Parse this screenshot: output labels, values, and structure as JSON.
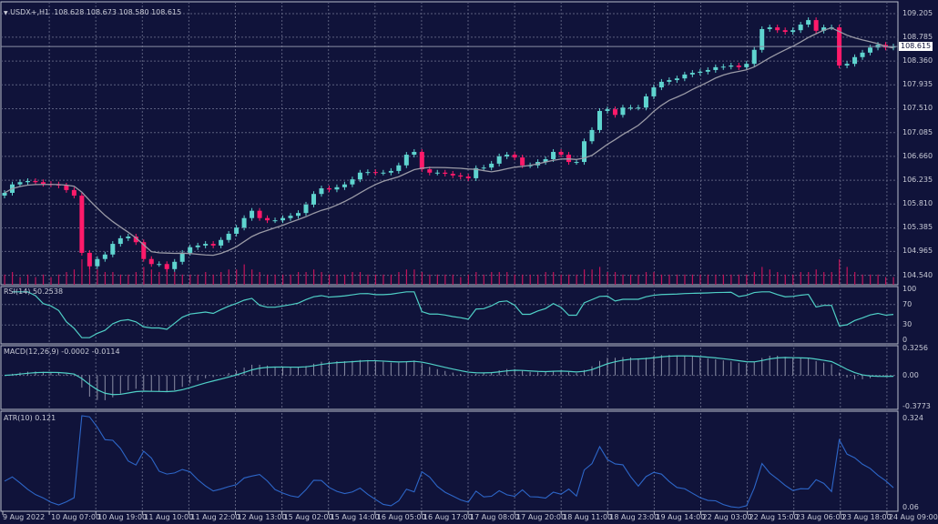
{
  "header": {
    "symbol": "USDX+,H1",
    "ohlc": "108.628 108.673 108.580 108.615",
    "arrow_icon": "triangle-down-icon"
  },
  "current_price": "108.615",
  "colors": {
    "background": "#10133a",
    "bull": "#5fd4cf",
    "bear": "#ff1a6a",
    "ma": "#9a9aa6",
    "rsi": "#4fcfc6",
    "macd": "#4fcfc6",
    "atr": "#2d66c8",
    "volume": "#c0145a",
    "grid": "#5b5f7e"
  },
  "chart_data": [
    {
      "type": "candlestick",
      "pane": "main",
      "ylim": [
        104.371,
        109.416
      ],
      "price_ticks": [
        "109.205",
        "108.785",
        "108.360",
        "107.935",
        "107.510",
        "107.085",
        "106.660",
        "106.235",
        "105.810",
        "105.385",
        "104.965",
        "104.540"
      ],
      "x_tick_labels": [
        "9 Aug 2022",
        "10 Aug 07:00",
        "10 Aug 19:00",
        "11 Aug 10:00",
        "11 Aug 22:00",
        "12 Aug 13:00",
        "15 Aug 02:00",
        "15 Aug 14:00",
        "16 Aug 05:00",
        "16 Aug 17:00",
        "17 Aug 08:00",
        "17 Aug 20:00",
        "18 Aug 11:00",
        "18 Aug 23:00",
        "19 Aug 14:00",
        "22 Aug 03:00",
        "22 Aug 15:00",
        "23 Aug 06:00",
        "23 Aug 18:00",
        "24 Aug 09:00"
      ],
      "close": [
        106.01,
        106.16,
        106.2,
        106.22,
        106.2,
        106.17,
        106.16,
        106.14,
        106.06,
        105.96,
        104.94,
        104.7,
        104.83,
        104.91,
        105.1,
        105.2,
        105.23,
        105.13,
        104.83,
        104.74,
        104.74,
        104.65,
        104.78,
        104.94,
        105.04,
        105.07,
        105.1,
        105.07,
        105.17,
        105.28,
        105.39,
        105.56,
        105.69,
        105.56,
        105.52,
        105.52,
        105.56,
        105.6,
        105.65,
        105.8,
        105.99,
        106.09,
        106.07,
        106.11,
        106.16,
        106.25,
        106.37,
        106.38,
        106.37,
        106.37,
        106.4,
        106.5,
        106.69,
        106.74,
        106.43,
        106.37,
        106.37,
        106.35,
        106.32,
        106.3,
        106.27,
        106.45,
        106.46,
        106.53,
        106.66,
        106.69,
        106.64,
        106.5,
        106.5,
        106.56,
        106.61,
        106.74,
        106.69,
        106.56,
        106.56,
        106.93,
        107.13,
        107.47,
        107.5,
        107.4,
        107.53,
        107.53,
        107.53,
        107.73,
        107.89,
        107.99,
        108.02,
        108.05,
        108.12,
        108.15,
        108.17,
        108.2,
        108.25,
        108.26,
        108.28,
        108.25,
        108.31,
        108.56,
        108.93,
        108.96,
        108.91,
        108.88,
        108.91,
        109.01,
        109.09,
        108.9,
        108.96,
        108.96,
        108.28,
        108.31,
        108.43,
        108.51,
        108.6,
        108.65,
        108.6,
        108.62
      ],
      "volume": [
        4,
        5,
        3,
        4,
        3,
        4,
        3,
        4,
        5,
        6,
        10,
        9,
        6,
        5,
        5,
        4,
        4,
        5,
        7,
        6,
        5,
        6,
        5,
        4,
        4,
        4,
        5,
        4,
        5,
        6,
        6,
        8,
        6,
        5,
        4,
        4,
        4,
        4,
        5,
        5,
        6,
        5,
        4,
        4,
        4,
        5,
        5,
        4,
        4,
        4,
        4,
        5,
        6,
        6,
        5,
        4,
        4,
        4,
        4,
        3,
        4,
        5,
        4,
        5,
        5,
        5,
        4,
        4,
        4,
        4,
        5,
        5,
        4,
        4,
        4,
        6,
        6,
        7,
        5,
        5,
        4,
        4,
        4,
        5,
        5,
        4,
        4,
        4,
        4,
        4,
        4,
        4,
        4,
        4,
        4,
        4,
        4,
        5,
        7,
        6,
        5,
        4,
        4,
        5,
        5,
        6,
        5,
        5,
        10,
        7,
        5,
        4,
        4,
        4,
        3,
        3
      ]
    },
    {
      "type": "line",
      "pane": "rsi",
      "label": "RSI(14) 50.2538",
      "ylim": [
        0,
        100
      ],
      "ticks": [
        "100",
        "70",
        "30",
        "0"
      ]
    },
    {
      "type": "line+bar",
      "pane": "macd",
      "label": "MACD(12,26,9) -0.0002 -0.0114",
      "ylim": [
        -0.3773,
        0.3256
      ],
      "ticks": [
        "0.3256",
        "0.00",
        "-0.3773"
      ]
    },
    {
      "type": "line",
      "pane": "atr",
      "label": "ATR(10) 0.121",
      "ylim": [
        0.06,
        0.324
      ],
      "ticks": [
        "0.324",
        "0.06"
      ]
    }
  ]
}
